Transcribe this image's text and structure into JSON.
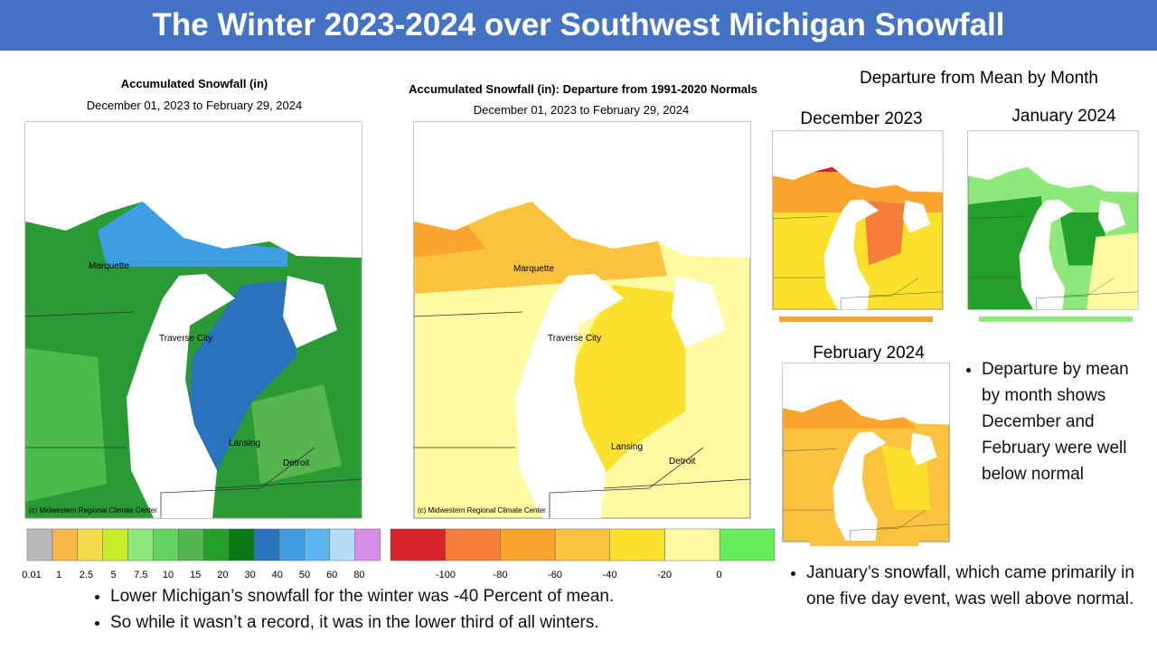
{
  "header": {
    "title": "The Winter 2023-2024 over Southwest Michigan Snowfall"
  },
  "maps": [
    {
      "title": "Accumulated Snowfall (in)",
      "subtitle": "December 01, 2023 to February 29, 2024",
      "cities": [
        "Marquette",
        "Traverse City",
        "Lansing",
        "Detroit"
      ],
      "credit": "(c) Midwestern Regional Climate Center"
    },
    {
      "title": "Accumulated Snowfall (in): Departure from 1991-2020 Normals",
      "subtitle": "December 01, 2023 to February 29, 2024",
      "cities": [
        "Marquette",
        "Traverse City",
        "Lansing",
        "Detroit"
      ],
      "credit": "(c) Midwestern Regional Climate Center"
    }
  ],
  "legends": [
    {
      "colors": [
        "#b9b9b9",
        "#f7b54a",
        "#f2dc4a",
        "#c8ec2a",
        "#8ee97a",
        "#63d25e",
        "#55b64f",
        "#23a02a",
        "#097a14",
        "#2a72bb",
        "#3f9de1",
        "#5cb6f0",
        "#b7dcf7",
        "#d88ee8"
      ],
      "labels": [
        "0.01",
        "1",
        "2.5",
        "5",
        "7.5",
        "10",
        "15",
        "20",
        "30",
        "40",
        "50",
        "60",
        "80"
      ]
    },
    {
      "colors": [
        "#d7242a",
        "#f57e3a",
        "#f9a42d",
        "#fbc23e",
        "#fbe02c",
        "#fff9a1",
        "#66ee5e"
      ],
      "labels": [
        "-100",
        "-80",
        "-60",
        "-40",
        "-20",
        "0"
      ]
    }
  ],
  "monthly": {
    "heading": "Departure from Mean by Month",
    "months": [
      "December 2023",
      "January 2024",
      "February 2024"
    ]
  },
  "notes": {
    "right": [
      "Departure by mean by month shows December and February were well below normal",
      "January’s snowfall, which came primarily in one five day event, was well above normal."
    ],
    "bottom": [
      "Lower Michigan’s snowfall for the winter was -40 Percent of mean.",
      "So while it wasn’t a record, it was in the lower third of all winters."
    ]
  }
}
